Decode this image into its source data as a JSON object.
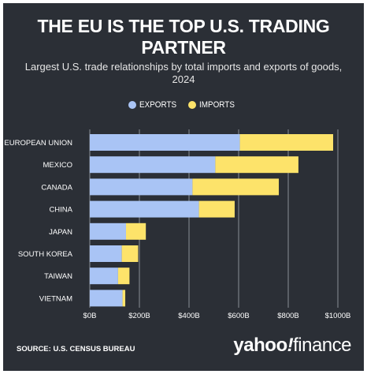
{
  "header": {
    "title": "THE EU IS THE TOP U.S. TRADING PARTNER",
    "subtitle": "Largest U.S. trade relationships by total imports and exports of goods, 2024"
  },
  "footer": {
    "source": "SOURCE: U.S. CENSUS BUREAU",
    "logo_part1": "yahoo",
    "logo_bang": "!",
    "logo_part2": "finance"
  },
  "colors": {
    "background": "#2b2f36",
    "exports": "#a9c4f5",
    "imports": "#fde36a",
    "grid": "#8a8f96",
    "text": "#ffffff"
  },
  "chart_data": {
    "type": "bar",
    "orientation": "horizontal",
    "stacked": true,
    "categories": [
      "EUROPEAN UNION",
      "MEXICO",
      "CANADA",
      "CHINA",
      "JAPAN",
      "SOUTH KOREA",
      "TAIWAN",
      "VIETNAM"
    ],
    "series": [
      {
        "name": "EXPORTS",
        "color": "#a9c4f5",
        "values": [
          605,
          506,
          414,
          440,
          146,
          129,
          114,
          132
        ]
      },
      {
        "name": "IMPORTS",
        "color": "#fde36a",
        "values": [
          376,
          335,
          348,
          144,
          80,
          66,
          46,
          11
        ]
      }
    ],
    "xlim": [
      0,
      1000
    ],
    "xticks": [
      0,
      200,
      400,
      600,
      800,
      1000
    ],
    "xtick_labels": [
      "$0B",
      "$200B",
      "$400B",
      "$600B",
      "$800B",
      "$1000B"
    ],
    "grid": true,
    "legend_position": "top-center"
  }
}
